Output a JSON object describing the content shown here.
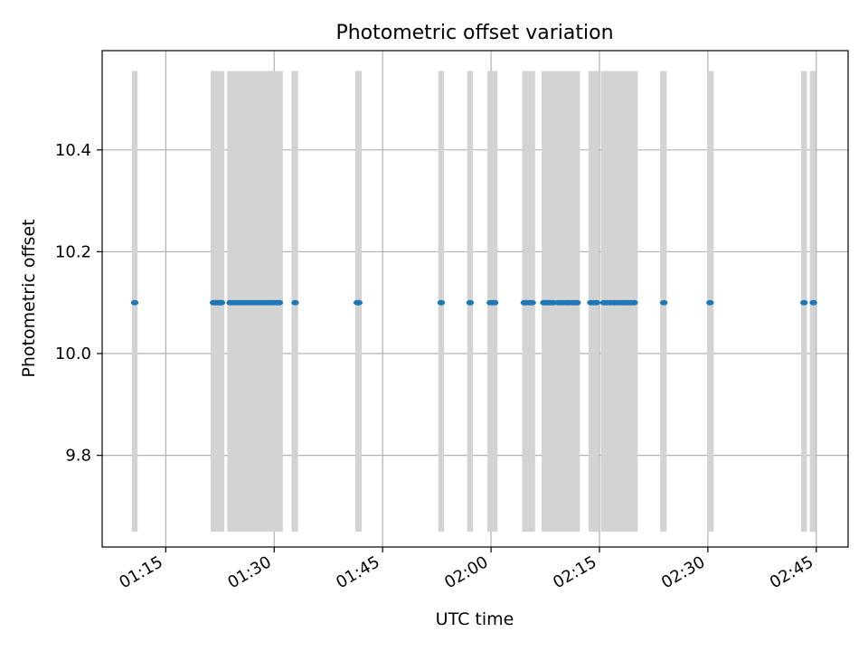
{
  "chart_data": {
    "type": "scatter",
    "title": "Photometric offset variation",
    "xlabel": "UTC time",
    "ylabel": "Photometric offset",
    "x_axis": "time",
    "xlim": [
      "01:06:12",
      "02:49:24"
    ],
    "ylim": [
      9.62,
      10.595
    ],
    "x_ticks": [
      "01:15",
      "01:30",
      "01:45",
      "02:00",
      "02:15",
      "02:30",
      "02:45"
    ],
    "y_ticks": [
      9.8,
      10.0,
      10.2,
      10.4
    ],
    "y_tick_labels": [
      "9.8",
      "10.0",
      "10.2",
      "10.4"
    ],
    "grid": true,
    "band_range": [
      9.65,
      10.555
    ],
    "band_color": "#d3d3d3",
    "point_color": "#1f77b4",
    "shaded_intervals": [
      [
        "01:10:18",
        "01:11:06"
      ],
      [
        "01:21:12",
        "01:23:06"
      ],
      [
        "01:23:30",
        "01:31:12"
      ],
      [
        "01:32:24",
        "01:33:18"
      ],
      [
        "01:41:12",
        "01:42:06"
      ],
      [
        "01:52:42",
        "01:53:30"
      ],
      [
        "01:56:42",
        "01:57:30"
      ],
      [
        "01:59:30",
        "02:00:54"
      ],
      [
        "02:04:18",
        "02:06:06"
      ],
      [
        "02:07:00",
        "02:12:18"
      ],
      [
        "02:13:30",
        "02:14:54"
      ],
      [
        "02:15:12",
        "02:20:18"
      ],
      [
        "02:23:24",
        "02:24:18"
      ],
      [
        "02:29:54",
        "02:30:48"
      ],
      [
        "02:42:54",
        "02:43:42"
      ],
      [
        "02:44:06",
        "02:44:54"
      ]
    ],
    "series": [
      {
        "x": [
          "01:10:42",
          "01:21:36",
          "01:21:54",
          "01:22:12",
          "01:22:30",
          "01:22:42",
          "01:23:54",
          "01:24:18",
          "01:24:42",
          "01:25:06",
          "01:25:30",
          "01:25:54",
          "01:26:18",
          "01:26:42",
          "01:27:06",
          "01:27:30",
          "01:27:54",
          "01:28:18",
          "01:28:42",
          "01:29:06",
          "01:29:30",
          "01:29:54",
          "01:30:18",
          "01:30:42",
          "01:32:54",
          "01:41:30",
          "01:41:42",
          "01:53:06",
          "01:57:06",
          "01:59:54",
          "02:00:12",
          "02:00:30",
          "02:04:36",
          "02:04:54",
          "02:05:18",
          "02:05:42",
          "02:07:18",
          "02:07:36",
          "02:07:54",
          "02:08:12",
          "02:08:36",
          "02:09:18",
          "02:09:42",
          "02:10:06",
          "02:10:30",
          "02:10:48",
          "02:11:12",
          "02:11:36",
          "02:11:54",
          "02:13:48",
          "02:14:12",
          "02:14:36",
          "02:15:36",
          "02:16:00",
          "02:16:30",
          "02:17:00",
          "02:17:24",
          "02:17:48",
          "02:18:12",
          "02:18:36",
          "02:19:00",
          "02:19:24",
          "02:19:48",
          "02:23:54",
          "02:30:18",
          "02:43:18",
          "02:44:36"
        ],
        "y": [
          10.1,
          10.1,
          10.1,
          10.1,
          10.1,
          10.1,
          10.1,
          10.1,
          10.1,
          10.1,
          10.1,
          10.1,
          10.1,
          10.1,
          10.1,
          10.1,
          10.1,
          10.1,
          10.1,
          10.1,
          10.1,
          10.1,
          10.1,
          10.1,
          10.1,
          10.1,
          10.1,
          10.1,
          10.1,
          10.1,
          10.1,
          10.1,
          10.1,
          10.1,
          10.1,
          10.1,
          10.1,
          10.1,
          10.1,
          10.1,
          10.1,
          10.1,
          10.1,
          10.1,
          10.1,
          10.1,
          10.1,
          10.1,
          10.1,
          10.1,
          10.1,
          10.1,
          10.1,
          10.1,
          10.1,
          10.1,
          10.1,
          10.1,
          10.1,
          10.1,
          10.1,
          10.1,
          10.1,
          10.1,
          10.1,
          10.1,
          10.1
        ]
      }
    ]
  }
}
